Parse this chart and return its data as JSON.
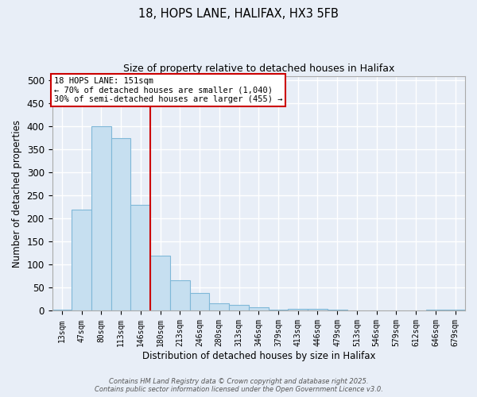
{
  "title_line1": "18, HOPS LANE, HALIFAX, HX3 5FB",
  "title_line2": "Size of property relative to detached houses in Halifax",
  "xlabel": "Distribution of detached houses by size in Halifax",
  "ylabel": "Number of detached properties",
  "categories": [
    "13sqm",
    "47sqm",
    "80sqm",
    "113sqm",
    "146sqm",
    "180sqm",
    "213sqm",
    "246sqm",
    "280sqm",
    "313sqm",
    "346sqm",
    "379sqm",
    "413sqm",
    "446sqm",
    "479sqm",
    "513sqm",
    "546sqm",
    "579sqm",
    "612sqm",
    "646sqm",
    "679sqm"
  ],
  "values": [
    2,
    220,
    400,
    375,
    230,
    120,
    67,
    38,
    16,
    13,
    7,
    3,
    5,
    5,
    2,
    1,
    1,
    1,
    0,
    2,
    2
  ],
  "bar_color": "#c6dff0",
  "bar_edge_color": "#7fb8d8",
  "redline_index": 4.5,
  "annotation_title": "18 HOPS LANE: 151sqm",
  "annotation_line1": "← 70% of detached houses are smaller (1,040)",
  "annotation_line2": "30% of semi-detached houses are larger (455) →",
  "annotation_box_color": "#ffffff",
  "annotation_box_edge_color": "#cc0000",
  "ylim": [
    0,
    510
  ],
  "yticks": [
    0,
    50,
    100,
    150,
    200,
    250,
    300,
    350,
    400,
    450,
    500
  ],
  "background_color": "#e8eef7",
  "grid_color": "#ffffff",
  "footer_line1": "Contains HM Land Registry data © Crown copyright and database right 2025.",
  "footer_line2": "Contains public sector information licensed under the Open Government Licence v3.0."
}
